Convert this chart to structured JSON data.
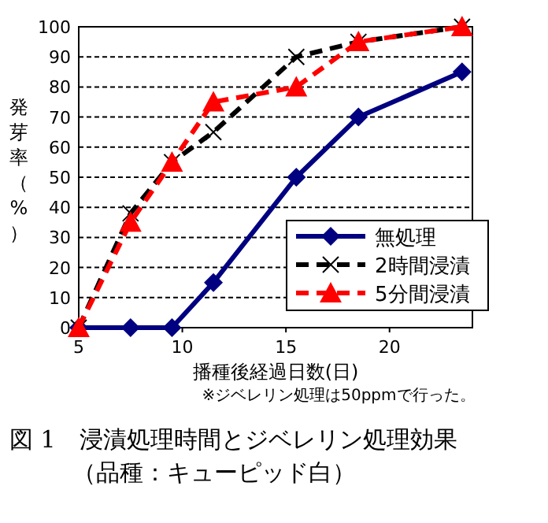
{
  "chart_data": {
    "type": "line",
    "title": "図 1　浸漬処理時間とジベレリン処理効果",
    "subtitle": "（品種：キューピッド白）",
    "xlabel": "播種後経過日数(日)",
    "ylabel": "発芽率（%）",
    "annotations": [
      "※ジベレリン処理は50ppmで行った。"
    ],
    "xlim": [
      5,
      24
    ],
    "xticks": [
      5,
      10,
      15,
      20
    ],
    "ylim": [
      0,
      100
    ],
    "yticks": [
      0,
      10,
      20,
      30,
      40,
      50,
      60,
      70,
      80,
      90,
      100
    ],
    "grid": "y",
    "legend": "bottom right",
    "series": [
      {
        "name": "無処理",
        "color": "#000080",
        "marker": "diamond",
        "line_style": "solid",
        "x": [
          5,
          7.5,
          9.5,
          11.5,
          15.5,
          18.5,
          23.5
        ],
        "values": [
          0,
          0,
          0,
          15,
          50,
          70,
          85
        ]
      },
      {
        "name": "2時間浸漬",
        "color": "#000000",
        "marker": "cross",
        "line_style": "dashed",
        "x": [
          5,
          7.5,
          9.5,
          11.5,
          15.5,
          18.5,
          23.5
        ],
        "values": [
          0,
          38,
          55,
          65,
          90,
          95,
          100
        ]
      },
      {
        "name": "5分間浸漬",
        "color": "#ff0000",
        "marker": "triangle",
        "line_style": "dashed",
        "x": [
          5,
          7.5,
          9.5,
          11.5,
          15.5,
          18.5,
          23.5
        ],
        "values": [
          0,
          35,
          55,
          75,
          80,
          95,
          100
        ]
      }
    ]
  }
}
